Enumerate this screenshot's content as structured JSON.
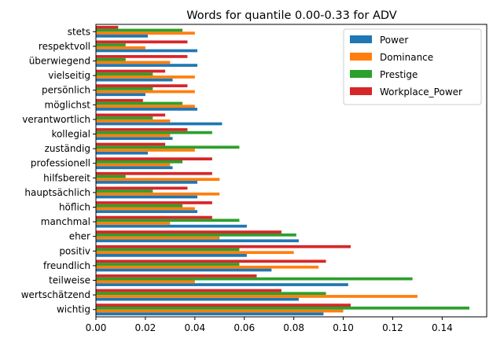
{
  "chart_data": {
    "type": "bar",
    "orientation": "horizontal",
    "title": "Words for quantile 0.00-0.33 for ADV",
    "xlabel": "",
    "ylabel": "",
    "xlim": [
      0,
      0.158
    ],
    "xticks": [
      0.0,
      0.02,
      0.04,
      0.06,
      0.08,
      0.1,
      0.12,
      0.14
    ],
    "xtick_labels": [
      "0.00",
      "0.02",
      "0.04",
      "0.06",
      "0.08",
      "0.10",
      "0.12",
      "0.14"
    ],
    "grid": false,
    "legend_position": "top-right",
    "categories": [
      "wichtig",
      "wertschätzend",
      "teilweise",
      "freundlich",
      "positiv",
      "eher",
      "manchmal",
      "höflich",
      "hauptsächlich",
      "hilfsbereit",
      "professionell",
      "zuständig",
      "kollegial",
      "verantwortlich",
      "möglichst",
      "persönlich",
      "vielseitig",
      "überwiegend",
      "respektvoll",
      "stets"
    ],
    "series": [
      {
        "name": "Power",
        "color": "#1f77b4",
        "values": [
          0.092,
          0.082,
          0.102,
          0.071,
          0.061,
          0.082,
          0.061,
          0.041,
          0.041,
          0.041,
          0.031,
          0.021,
          0.031,
          0.051,
          0.041,
          0.02,
          0.031,
          0.041,
          0.041,
          0.021
        ]
      },
      {
        "name": "Dominance",
        "color": "#ff7f0e",
        "values": [
          0.1,
          0.13,
          0.04,
          0.09,
          0.08,
          0.05,
          0.03,
          0.04,
          0.05,
          0.05,
          0.03,
          0.04,
          0.03,
          0.03,
          0.04,
          0.04,
          0.04,
          0.03,
          0.02,
          0.04
        ]
      },
      {
        "name": "Prestige",
        "color": "#2ca02c",
        "values": [
          0.151,
          0.093,
          0.128,
          0.058,
          0.058,
          0.081,
          0.058,
          0.035,
          0.023,
          0.012,
          0.035,
          0.058,
          0.047,
          0.023,
          0.035,
          0.023,
          0.023,
          0.012,
          0.012,
          0.035
        ]
      },
      {
        "name": "Workplace_Power",
        "color": "#d62728",
        "values": [
          0.103,
          0.075,
          0.065,
          0.093,
          0.103,
          0.075,
          0.047,
          0.047,
          0.037,
          0.047,
          0.047,
          0.028,
          0.037,
          0.028,
          0.019,
          0.037,
          0.028,
          0.037,
          0.037,
          0.009
        ]
      }
    ]
  }
}
